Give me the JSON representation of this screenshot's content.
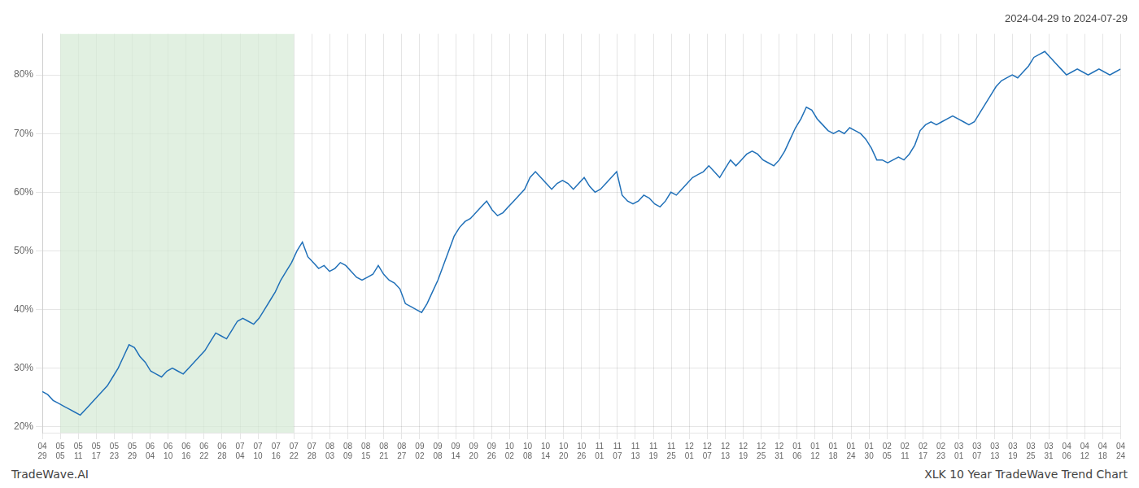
{
  "chart_data": {
    "type": "line",
    "title": "2024-04-29 to 2024-07-29",
    "annotations": [
      "TradeWave.AI",
      "XLK 10 Year TradeWave Trend Chart"
    ],
    "grid": true,
    "series": [
      {
        "color": "#2070b8",
        "values": [
          26.0,
          25.5,
          24.5,
          24.0,
          23.5,
          23.0,
          22.5,
          22.0,
          23.0,
          24.0,
          25.0,
          26.0,
          27.0,
          28.5,
          30.0,
          32.0,
          34.0,
          33.5,
          32.0,
          31.0,
          29.5,
          29.0,
          28.5,
          29.5,
          30.0,
          29.5,
          29.0,
          30.0,
          31.0,
          32.0,
          33.0,
          34.5,
          36.0,
          35.5,
          35.0,
          36.5,
          38.0,
          38.5,
          38.0,
          37.5,
          38.5,
          40.0,
          41.5,
          43.0,
          45.0,
          46.5,
          48.0,
          50.0,
          51.5,
          49.0,
          48.0,
          47.0,
          47.5,
          46.5,
          47.0,
          48.0,
          47.5,
          46.5,
          45.5,
          45.0,
          45.5,
          46.0,
          47.5,
          46.0,
          45.0,
          44.5,
          43.5,
          41.0,
          40.5,
          40.0,
          39.5,
          41.0,
          43.0,
          45.0,
          47.5,
          50.0,
          52.5,
          54.0,
          55.0,
          55.5,
          56.5,
          57.5,
          58.5,
          57.0,
          56.0,
          56.5,
          57.5,
          58.5,
          59.5,
          60.5,
          62.5,
          63.5,
          62.5,
          61.5,
          60.5,
          61.5,
          62.0,
          61.5,
          60.5,
          61.5,
          62.5,
          61.0,
          60.0,
          60.5,
          61.5,
          62.5,
          63.5,
          59.5,
          58.5,
          58.0,
          58.5,
          59.5,
          59.0,
          58.0,
          57.5,
          58.5,
          60.0,
          59.5,
          60.5,
          61.5,
          62.5,
          63.0,
          63.5,
          64.5,
          63.5,
          62.5,
          64.0,
          65.5,
          64.5,
          65.5,
          66.5,
          67.0,
          66.5,
          65.5,
          65.0,
          64.5,
          65.5,
          67.0,
          69.0,
          71.0,
          72.5,
          74.5,
          74.0,
          72.5,
          71.5,
          70.5,
          70.0,
          70.5,
          70.0,
          71.0,
          70.5,
          70.0,
          69.0,
          67.5,
          65.5,
          65.5,
          65.0,
          65.5,
          66.0,
          65.5,
          66.5,
          68.0,
          70.5,
          71.5,
          72.0,
          71.5,
          72.0,
          72.5,
          73.0,
          72.5,
          72.0,
          71.5,
          72.0,
          73.5,
          75.0,
          76.5,
          78.0,
          79.0,
          79.5,
          80.0,
          79.5,
          80.5,
          81.5,
          83.0,
          83.5,
          84.0,
          83.0,
          82.0,
          81.0,
          80.0,
          80.5,
          81.0,
          80.5,
          80.0,
          80.5,
          81.0,
          80.5,
          80.0,
          80.5,
          81.0
        ]
      }
    ],
    "x": [
      0,
      1,
      2,
      3,
      4,
      5,
      6,
      7,
      8,
      9,
      10,
      11,
      12,
      13,
      14,
      15,
      16,
      17,
      18,
      19,
      20,
      21,
      22,
      23,
      24,
      25,
      26,
      27,
      28,
      29,
      30,
      31,
      32,
      33,
      34,
      35,
      36,
      37,
      38,
      39,
      40,
      41,
      42,
      43,
      44,
      45,
      46,
      47,
      48,
      49,
      50,
      51,
      52,
      53,
      54,
      55,
      56,
      57,
      58,
      59,
      60,
      61,
      62,
      63,
      64,
      65,
      66,
      67,
      68,
      69,
      70,
      71,
      72,
      73,
      74,
      75,
      76,
      77,
      78,
      79,
      80,
      81,
      82,
      83,
      84,
      85,
      86,
      87,
      88,
      89,
      90,
      91,
      92,
      93,
      94,
      95,
      96,
      97,
      98,
      99,
      100,
      101,
      102,
      103,
      104,
      105,
      106,
      107,
      108,
      109,
      110,
      111,
      112,
      113,
      114,
      115,
      116,
      117,
      118,
      119,
      120,
      121,
      122,
      123,
      124,
      125,
      126,
      127,
      128,
      129,
      130,
      131,
      132,
      133,
      134,
      135,
      136,
      137,
      138,
      139,
      140,
      141,
      142,
      143,
      144,
      145,
      146,
      147,
      148,
      149,
      150,
      151,
      152,
      153,
      154,
      155,
      156,
      157,
      158,
      159,
      160,
      161,
      162,
      163,
      164,
      165,
      166,
      167,
      168,
      169,
      170,
      171,
      172,
      173,
      174,
      175,
      176,
      177,
      178,
      179,
      180,
      181,
      182,
      183,
      184,
      185,
      186,
      187,
      188,
      189,
      190,
      191,
      192,
      193,
      194,
      195,
      196,
      197,
      198,
      199
    ],
    "xlim": [
      0,
      199
    ],
    "xticks": [
      {
        "value": 0,
        "label": "04\n29"
      },
      {
        "value": 3.316667,
        "label": "05\n05"
      },
      {
        "value": 6.633333,
        "label": "05\n11"
      },
      {
        "value": 9.95,
        "label": "05\n17"
      },
      {
        "value": 13.266667,
        "label": "05\n23"
      },
      {
        "value": 16.583333,
        "label": "05\n29"
      },
      {
        "value": 19.9,
        "label": "06\n04"
      },
      {
        "value": 23.216667,
        "label": "06\n10"
      },
      {
        "value": 26.533333,
        "label": "06\n16"
      },
      {
        "value": 29.85,
        "label": "06\n22"
      },
      {
        "value": 33.166667,
        "label": "06\n28"
      },
      {
        "value": 36.483333,
        "label": "07\n04"
      },
      {
        "value": 39.8,
        "label": "07\n10"
      },
      {
        "value": 43.116667,
        "label": "07\n16"
      },
      {
        "value": 46.433333,
        "label": "07\n22"
      },
      {
        "value": 49.75,
        "label": "07\n28"
      },
      {
        "value": 53.066667,
        "label": "08\n03"
      },
      {
        "value": 56.383333,
        "label": "08\n09"
      },
      {
        "value": 59.7,
        "label": "08\n15"
      },
      {
        "value": 63.016667,
        "label": "08\n21"
      },
      {
        "value": 66.333333,
        "label": "08\n27"
      },
      {
        "value": 69.65,
        "label": "09\n02"
      },
      {
        "value": 72.966667,
        "label": "09\n08"
      },
      {
        "value": 76.283333,
        "label": "09\n14"
      },
      {
        "value": 79.6,
        "label": "09\n20"
      },
      {
        "value": 82.916667,
        "label": "09\n26"
      },
      {
        "value": 86.233333,
        "label": "10\n02"
      },
      {
        "value": 89.55,
        "label": "10\n08"
      },
      {
        "value": 92.866667,
        "label": "10\n14"
      },
      {
        "value": 96.183333,
        "label": "10\n20"
      },
      {
        "value": 99.5,
        "label": "10\n26"
      },
      {
        "value": 102.816667,
        "label": "11\n01"
      },
      {
        "value": 106.133333,
        "label": "11\n07"
      },
      {
        "value": 109.45,
        "label": "11\n13"
      },
      {
        "value": 112.766667,
        "label": "11\n19"
      },
      {
        "value": 116.083333,
        "label": "11\n25"
      },
      {
        "value": 119.4,
        "label": "12\n01"
      },
      {
        "value": 122.716667,
        "label": "12\n07"
      },
      {
        "value": 126.033333,
        "label": "12\n13"
      },
      {
        "value": 129.35,
        "label": "12\n19"
      },
      {
        "value": 132.666667,
        "label": "12\n25"
      },
      {
        "value": 135.983333,
        "label": "12\n31"
      },
      {
        "value": 139.3,
        "label": "01\n06"
      },
      {
        "value": 142.616667,
        "label": "01\n12"
      },
      {
        "value": 145.933333,
        "label": "01\n18"
      },
      {
        "value": 149.25,
        "label": "01\n24"
      },
      {
        "value": 152.566667,
        "label": "01\n30"
      },
      {
        "value": 155.883333,
        "label": "02\n05"
      },
      {
        "value": 159.2,
        "label": "02\n11"
      },
      {
        "value": 162.516667,
        "label": "02\n17"
      },
      {
        "value": 165.833333,
        "label": "02\n23"
      },
      {
        "value": 169.15,
        "label": "03\n01"
      },
      {
        "value": 172.466667,
        "label": "03\n07"
      },
      {
        "value": 175.783333,
        "label": "03\n13"
      },
      {
        "value": 179.1,
        "label": "03\n19"
      },
      {
        "value": 182.416667,
        "label": "03\n25"
      },
      {
        "value": 185.733333,
        "label": "03\n31"
      },
      {
        "value": 189.05,
        "label": "04\n06"
      },
      {
        "value": 192.366667,
        "label": "04\n12"
      },
      {
        "value": 195.683333,
        "label": "04\n18"
      },
      {
        "value": 199,
        "label": "04\n24"
      }
    ],
    "ylim": [
      19,
      87
    ],
    "yticks": [
      {
        "value": 20,
        "label": "20%"
      },
      {
        "value": 30,
        "label": "30%"
      },
      {
        "value": 40,
        "label": "40%"
      },
      {
        "value": 50,
        "label": "50%"
      },
      {
        "value": 60,
        "label": "60%"
      },
      {
        "value": 70,
        "label": "70%"
      },
      {
        "value": 80,
        "label": "80%"
      }
    ],
    "spans": [
      {
        "from": 3.316667,
        "to": 46.433333,
        "color": "#d4ead4"
      }
    ]
  }
}
